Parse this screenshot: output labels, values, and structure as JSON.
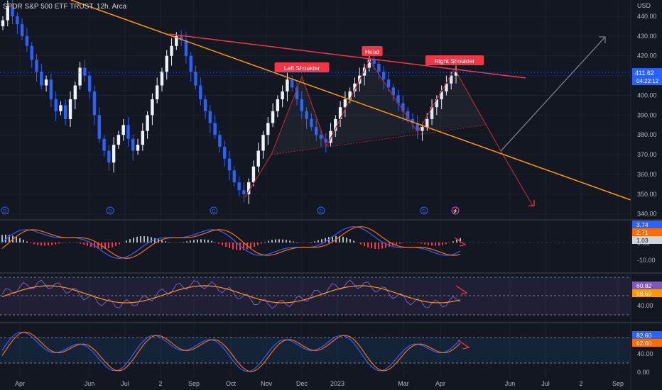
{
  "header": {
    "symbol_name": "SPDR S&P 500 ETF TRUST",
    "interval": "12h",
    "exchange": "Arca"
  },
  "colors": {
    "background": "#131722",
    "grid": "#1e222d",
    "candle_up": "#f0f3fa",
    "candle_down": "#2962ff",
    "neckline": "#ff9800",
    "resistance": "#f23645",
    "pattern": "#b22833",
    "arrow_up": "#787b86",
    "arrow_down": "#f23645",
    "label_bg": "#f23645",
    "price_tag_bg": "#2962ff",
    "macd_line": "#2962ff",
    "signal_line": "#ff6d00",
    "hist_up": "#b2b5be",
    "hist_down": "#f23645",
    "rsi_line": "#7e57c2",
    "rsi_ma": "#ff9800",
    "stoch_k": "#2962ff",
    "stoch_d": "#ff6d00"
  },
  "chart_data": {
    "type": "candlestick",
    "price_axis": {
      "unit": "USD",
      "ticks": [
        "440.00",
        "430.00",
        "420.00",
        "410.00",
        "400.00",
        "390.00",
        "380.00",
        "370.00",
        "360.00",
        "350.00",
        "340.00"
      ]
    },
    "time_axis": {
      "labels": [
        "Apr",
        "Jun",
        "Jul",
        "2",
        "Sep",
        "Oct",
        "Nov",
        "Dec",
        "2023",
        "Mar",
        "Apr",
        "Jun",
        "Jul",
        "2",
        "Sep"
      ]
    },
    "last_price": "411.62",
    "countdown": "04:22:12",
    "close_series": [
      438,
      445,
      440,
      436,
      430,
      425,
      418,
      412,
      405,
      408,
      398,
      392,
      395,
      388,
      398,
      405,
      414,
      410,
      402,
      390,
      378,
      372,
      366,
      375,
      380,
      385,
      378,
      372,
      375,
      382,
      390,
      398,
      405,
      412,
      420,
      425,
      430,
      428,
      420,
      412,
      405,
      398,
      392,
      386,
      380,
      374,
      368,
      362,
      356,
      352,
      350,
      356,
      364,
      372,
      380,
      386,
      392,
      398,
      402,
      408,
      404,
      398,
      392,
      388,
      384,
      380,
      378,
      376,
      382,
      388,
      394,
      398,
      402,
      406,
      410,
      414,
      418,
      416,
      412,
      408,
      404,
      400,
      396,
      392,
      388,
      386,
      382,
      384,
      388,
      394,
      398,
      402,
      406,
      410,
      412
    ],
    "pattern_labels": [
      "Left Shoulder",
      "Head",
      "Right Shoulder"
    ],
    "event_markers": [
      "D",
      "D",
      "D",
      "D",
      "D",
      "⚡"
    ],
    "annotations": [
      {
        "kind": "trendline",
        "role": "descending-orange"
      },
      {
        "kind": "trendline",
        "role": "resistance-red"
      },
      {
        "kind": "projection",
        "direction": "up"
      },
      {
        "kind": "projection",
        "direction": "down"
      }
    ],
    "indicators": [
      {
        "name": "MACD",
        "values": [
          "3.74",
          "2.71",
          "1.03"
        ],
        "axis_ticks": [
          "0.00",
          "-10.00"
        ]
      },
      {
        "name": "RSI",
        "values": [
          "60.82",
          "58.69"
        ],
        "axis_ticks": [
          "40.00"
        ]
      },
      {
        "name": "Stochastic",
        "values": [
          "82.60",
          "82.60"
        ],
        "axis_ticks": [
          "40.00",
          "0.00"
        ]
      }
    ]
  }
}
